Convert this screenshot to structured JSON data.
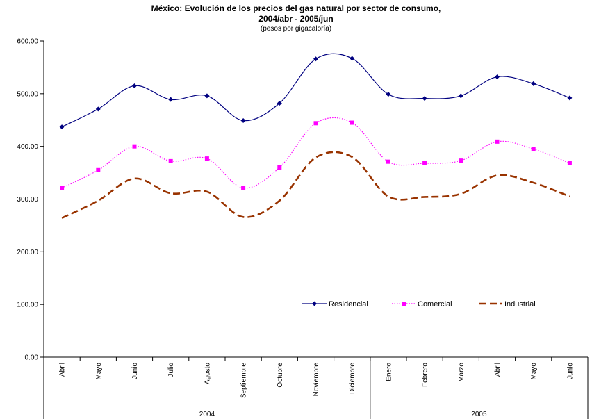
{
  "chart_data": {
    "type": "line",
    "title_line1": "México: Evolución de los precios del gas natural por sector de consumo,",
    "title_line2": "2004/abr - 2005/jun",
    "subtitle": "(pesos por gigacaloría)",
    "ylim": [
      0,
      600
    ],
    "yticks": [
      "0.00",
      "100.00",
      "200.00",
      "300.00",
      "400.00",
      "500.00",
      "600.00"
    ],
    "categories": [
      "Abril",
      "Mayo",
      "Junio",
      "Julio",
      "Agosto",
      "Septiembre",
      "Octubre",
      "Noviembre",
      "Diciembre",
      "Enero",
      "Febrero",
      "Marzo",
      "Abril",
      "Mayo",
      "Junio"
    ],
    "year_groups": [
      {
        "label": "2004",
        "count": 9
      },
      {
        "label": "2005",
        "count": 6
      }
    ],
    "legend_position": "inside-lower-right",
    "series": [
      {
        "name": "Residencial",
        "color": "#000080",
        "style": "solid",
        "marker": "diamond",
        "values": [
          437,
          471,
          515,
          489,
          496,
          449,
          482,
          566,
          567,
          499,
          491,
          496,
          532,
          519,
          492
        ]
      },
      {
        "name": "Comercial",
        "color": "#FF00FF",
        "style": "dotted",
        "marker": "square",
        "values": [
          321,
          355,
          400,
          372,
          377,
          321,
          360,
          444,
          445,
          371,
          368,
          373,
          409,
          395,
          368
        ]
      },
      {
        "name": "Industrial",
        "color": "#993300",
        "style": "dashed",
        "marker": "none",
        "values": [
          264,
          297,
          339,
          311,
          314,
          266,
          297,
          379,
          380,
          305,
          304,
          310,
          345,
          331,
          305
        ]
      }
    ]
  }
}
